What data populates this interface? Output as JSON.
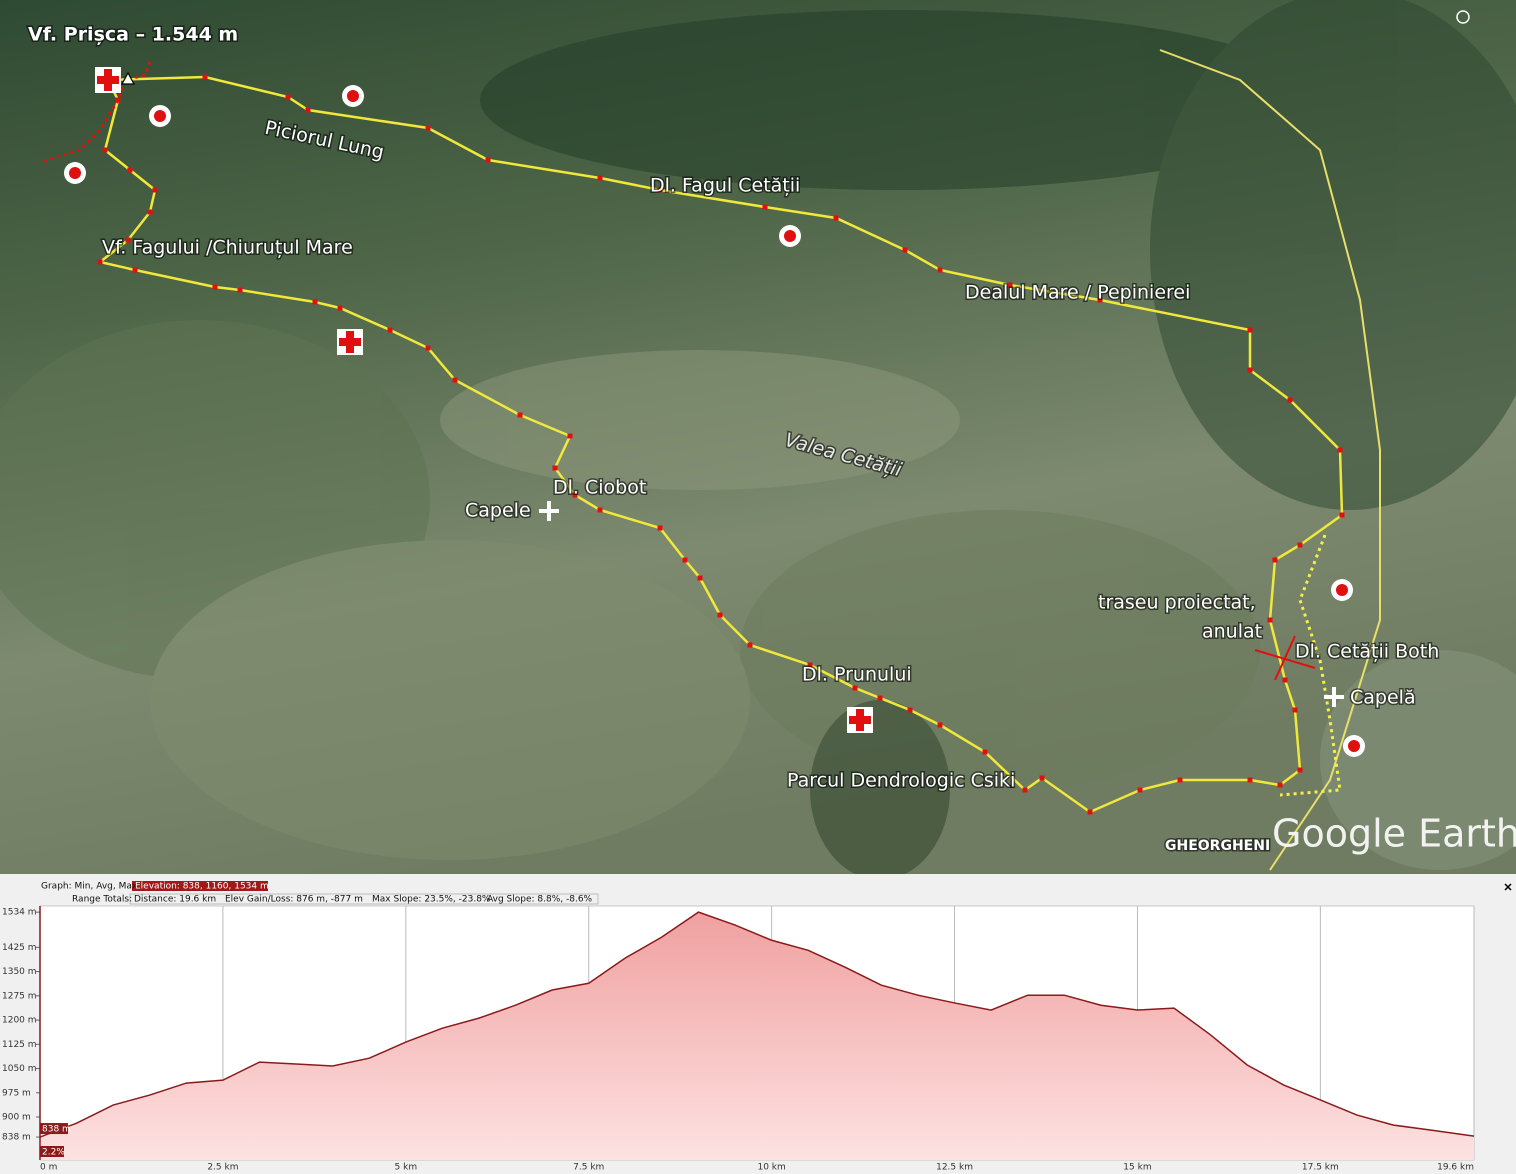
{
  "map": {
    "labels": {
      "prisca": "Vf. Prișca – 1.544 m",
      "piciorul": "Piciorul Lung",
      "fagul": "Dl. Fagul Cetății",
      "chiurut": "Vf. Fagului /Chiuruțul Mare",
      "dealul": "Dealul Mare / Pepinierei",
      "valea": "Valea Cetății",
      "ciobot": "Dl. Ciobot",
      "capele": "Capele",
      "proiectat": "traseu proiectat,",
      "anulat": "anulat",
      "both": "Dl. Cetății Both",
      "capela": "Capelă",
      "prunului": "Dl. Prunului",
      "parcul": "Parcul Dendrologic Csiki",
      "oras": "GHEORGHENI",
      "brand": "Google Earth"
    }
  },
  "profile_header": {
    "graph": "Graph: Min, Avg, Max",
    "elevation": "Elevation: 838, 1160, 1534 m",
    "range": "Range Totals:",
    "distance": "Distance: 19.6 km",
    "gain": "Elev Gain/Loss: 876 m, -877 m",
    "max_slope": "Max Slope: 23.5%, -23.8%",
    "avg_slope": "Avg Slope: 8.8%, -8.6%"
  },
  "cursor": {
    "elevation": "838 m",
    "slope": "2.2%"
  },
  "chart_data": {
    "type": "area",
    "color": "#8b1a1a",
    "grid": "x",
    "x": [
      0,
      0.5,
      1,
      1.5,
      2,
      2.5,
      3,
      3.5,
      4,
      4.5,
      5,
      5.5,
      6,
      6.5,
      7,
      7.5,
      8,
      8.5,
      9,
      9.5,
      10,
      10.5,
      11,
      11.5,
      12,
      12.5,
      13,
      13.5,
      14,
      14.5,
      15,
      15.5,
      16,
      16.5,
      17,
      17.5,
      18,
      18.5,
      19,
      19.6
    ],
    "values": [
      838,
      881,
      937,
      968,
      1005,
      1014,
      1070,
      1064,
      1058,
      1082,
      1132,
      1175,
      1206,
      1246,
      1293,
      1314,
      1392,
      1457,
      1534,
      1494,
      1447,
      1416,
      1364,
      1308,
      1277,
      1253,
      1231,
      1277,
      1277,
      1246,
      1231,
      1237,
      1154,
      1061,
      999,
      953,
      906,
      875,
      860,
      841
    ],
    "xlim": [
      0,
      19.6
    ],
    "ylim": [
      767,
      1553
    ],
    "xticks": [
      {
        "value": 0,
        "label": "0 m"
      },
      {
        "value": 2.5,
        "label": "2.5 km"
      },
      {
        "value": 5,
        "label": "5 km"
      },
      {
        "value": 7.5,
        "label": "7.5 km"
      },
      {
        "value": 10,
        "label": "10 km"
      },
      {
        "value": 12.5,
        "label": "12.5 km"
      },
      {
        "value": 15,
        "label": "15 km"
      },
      {
        "value": 17.5,
        "label": "17.5 km"
      },
      {
        "value": 19.6,
        "label": "19.6 km"
      }
    ],
    "yticks": [
      {
        "value": 838,
        "label": "838 m"
      },
      {
        "value": 900,
        "label": "900 m"
      },
      {
        "value": 975,
        "label": "975 m"
      },
      {
        "value": 1050,
        "label": "1050 m"
      },
      {
        "value": 1125,
        "label": "1125 m"
      },
      {
        "value": 1200,
        "label": "1200 m"
      },
      {
        "value": 1275,
        "label": "1275 m"
      },
      {
        "value": 1350,
        "label": "1350 m"
      },
      {
        "value": 1425,
        "label": "1425 m"
      },
      {
        "value": 1534,
        "label": "1534 m"
      }
    ]
  }
}
